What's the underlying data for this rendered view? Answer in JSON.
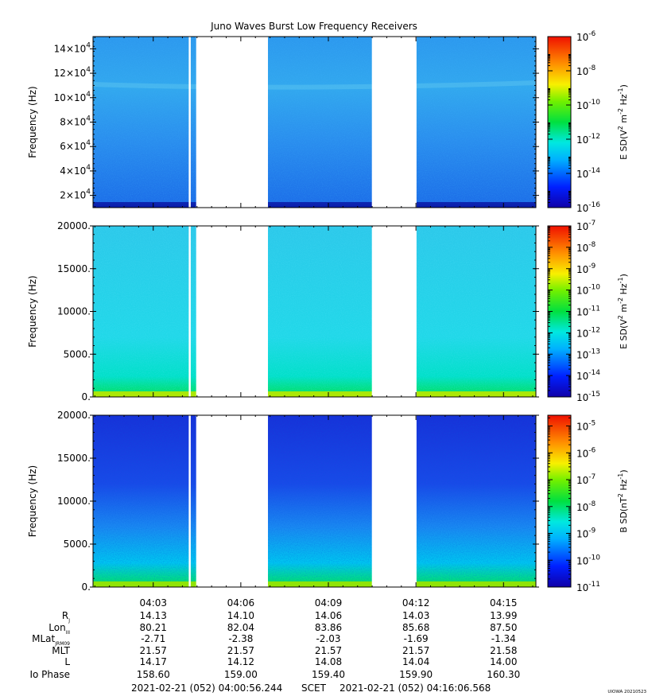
{
  "chart_data": {
    "type": "heatmap",
    "title": "Juno Waves Burst Low Frequency Receivers",
    "stamp": "UIOWA 20210523",
    "time_axis": {
      "start": "2021-02-21 (052) 04:00:56.244",
      "end": "2021-02-21 (052) 04:16:06.568",
      "scet_label": "SCET",
      "tick_labels": [
        "04:03",
        "04:06",
        "04:09",
        "04:12",
        "04:15"
      ],
      "tick_minutes": [
        3,
        6,
        9,
        12,
        15
      ],
      "range_minutes": [
        0.937,
        16.109
      ]
    },
    "data_gaps": [
      [
        4.47,
        6.93
      ],
      [
        10.49,
        12.02
      ]
    ],
    "panels": [
      {
        "ylabel": "Frequency (Hz)",
        "ylim": [
          10000,
          150000
        ],
        "yticks": [
          20000,
          40000,
          60000,
          80000,
          100000,
          120000,
          140000
        ],
        "yticklabels": [
          {
            "mant": "2×10",
            "exp": "4"
          },
          {
            "mant": "4×10",
            "exp": "4"
          },
          {
            "mant": "6×10",
            "exp": "4"
          },
          {
            "mant": "8×10",
            "exp": "4"
          },
          {
            "mant": "10×10",
            "exp": "4"
          },
          {
            "mant": "12×10",
            "exp": "4"
          },
          {
            "mant": "14×10",
            "exp": "4"
          }
        ],
        "colorbar": {
          "label": "E SD(V² m⁻² Hz⁻¹)",
          "label_base": "E SD(V",
          "sup1": "2",
          "mid": " m",
          "sup2": "-2",
          "mid2": " Hz",
          "sup3": "-1",
          "tail": ")",
          "log_range": [
            -16,
            -6
          ],
          "ticks": [
            -16,
            -14,
            -12,
            -10,
            -8,
            -6
          ],
          "scale": "log"
        },
        "background": "#2fa0ee"
      },
      {
        "ylabel": "Frequency (Hz)",
        "ylim": [
          0,
          20000
        ],
        "yticks": [
          0,
          5000,
          10000,
          15000,
          20000
        ],
        "yticklabels": [
          "0.",
          "5000.",
          "10000.",
          "15000.",
          "20000."
        ],
        "colorbar": {
          "label": "E SD(V² m⁻² Hz⁻¹)",
          "label_base": "E SD(V",
          "sup1": "2",
          "mid": " m",
          "sup2": "-2",
          "mid2": " Hz",
          "sup3": "-1",
          "tail": ")",
          "log_range": [
            -15,
            -7
          ],
          "ticks": [
            -15,
            -14,
            -13,
            -12,
            -11,
            -10,
            -9,
            -8,
            -7
          ],
          "scale": "log"
        },
        "background": "#2cd6e4"
      },
      {
        "ylabel": "Frequency (Hz)",
        "ylim": [
          0,
          20000
        ],
        "yticks": [
          0,
          5000,
          10000,
          15000,
          20000
        ],
        "yticklabels": [
          "0.",
          "5000.",
          "10000.",
          "15000.",
          "20000."
        ],
        "colorbar": {
          "label": "B SD(nT² Hz⁻¹)",
          "label_base": "B SD(nT",
          "sup1": "2",
          "mid": " Hz",
          "sup2": "-1",
          "mid2": "",
          "sup3": "",
          "tail": ")",
          "log_range": [
            -11,
            -4.6
          ],
          "ticks": [
            -11,
            -10,
            -9,
            -8,
            -7,
            -6,
            -5
          ],
          "scale": "log"
        },
        "background": "#1f3fe6"
      }
    ],
    "ephemeris": {
      "row_labels": [
        {
          "main": "R",
          "sub": "J"
        },
        {
          "main": "Lon",
          "sub": "III"
        },
        {
          "main": "MLat",
          "sub": "JRM09"
        },
        {
          "main": "MLT",
          "sub": ""
        },
        {
          "main": "L",
          "sub": ""
        },
        {
          "main": "Io Phase",
          "sub": ""
        }
      ],
      "columns": [
        [
          "14.13",
          "80.21",
          "-2.71",
          "21.57",
          "14.17",
          "158.60"
        ],
        [
          "14.10",
          "82.04",
          "-2.38",
          "21.57",
          "14.12",
          "159.00"
        ],
        [
          "14.06",
          "83.86",
          "-2.03",
          "21.57",
          "14.08",
          "159.40"
        ],
        [
          "14.03",
          "85.68",
          "-1.69",
          "21.57",
          "14.04",
          "159.90"
        ],
        [
          "13.99",
          "87.50",
          "-1.34",
          "21.58",
          "14.00",
          "160.30"
        ]
      ]
    }
  }
}
